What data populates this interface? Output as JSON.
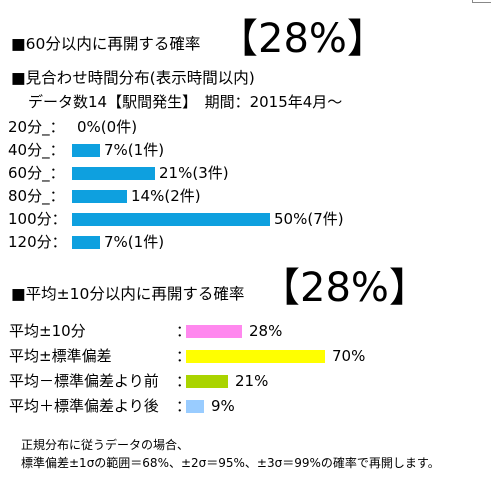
{
  "heading1": {
    "label": "■60分以内に再開する確率",
    "value": "【28%】"
  },
  "section1": {
    "title": "■見合わせ時間分布(表示時間以内)",
    "subtitle": "データ数14【駅間発生】　期間：2015年4月～"
  },
  "section2": {
    "title": "■平均±10分以内に再開する確率",
    "value": "【28%】"
  },
  "colors": {
    "distribution": "#0ea0df",
    "within_10": "#ff88ee",
    "within_sd": "#ffff00",
    "minus_sd": "#aad400",
    "plus_sd": "#99ccff"
  },
  "notes": {
    "line1": "正規分布に従うデータの場合、",
    "line2": "標準偏差±1σの範囲＝68%、±2σ＝95%、±3σ＝99%の確率で再開します。"
  },
  "chart_data": [
    {
      "type": "bar",
      "orientation": "horizontal",
      "categories": [
        "20分_：",
        "40分_：",
        "60分_：",
        "80分_：",
        "100分：",
        "120分："
      ],
      "values": [
        0,
        7,
        21,
        14,
        50,
        7
      ],
      "value_labels": [
        "0%(0件)",
        "7%(1件)",
        "21%(3件)",
        "14%(2件)",
        "50%(7件)",
        "7%(1件)"
      ],
      "counts": [
        0,
        1,
        3,
        2,
        7,
        1
      ],
      "xlim": [
        0,
        50
      ]
    },
    {
      "type": "bar",
      "orientation": "horizontal",
      "categories": [
        "平均±10分",
        "平均±標準偏差",
        "平均－標準偏差より前",
        "平均＋標準偏差より後"
      ],
      "separators": [
        "：",
        "：",
        "：",
        "："
      ],
      "values": [
        28,
        70,
        21,
        9
      ],
      "value_labels": [
        "28%",
        "70%",
        "21%",
        "9%"
      ],
      "xlim": [
        0,
        70
      ]
    }
  ]
}
